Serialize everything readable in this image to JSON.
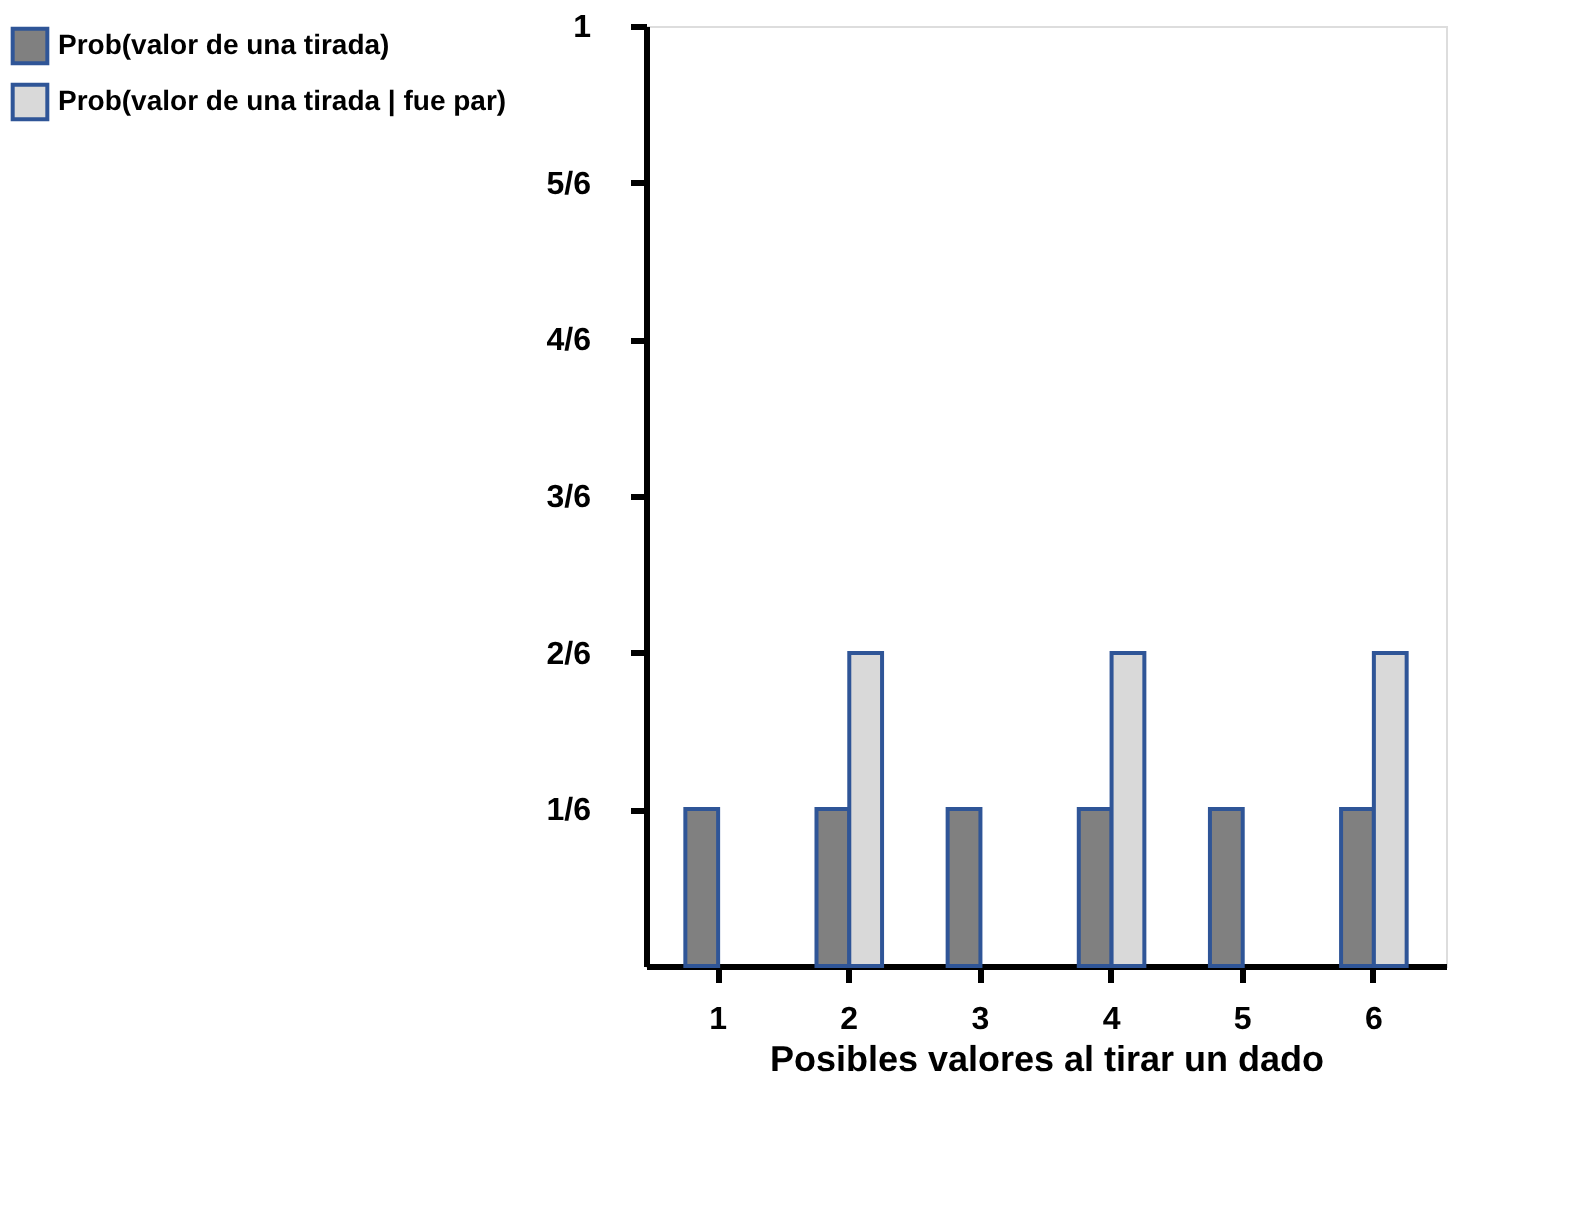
{
  "chart_data": {
    "type": "bar",
    "xlabel": "Posibles valores al tirar un dado",
    "categories": [
      "1",
      "2",
      "3",
      "4",
      "5",
      "6"
    ],
    "series": [
      {
        "name": "Prob(valor de una tirada)",
        "color": "#808080",
        "values": [
          0.167,
          0.167,
          0.167,
          0.167,
          0.167,
          0.167
        ]
      },
      {
        "name": "Prob(valor de una tirada | fue par)",
        "color": "#d9d9d9",
        "values": [
          null,
          0.333,
          null,
          0.333,
          null,
          0.333
        ]
      }
    ],
    "ylim": [
      0,
      1
    ],
    "yticks": [
      {
        "value": 0.1667,
        "label": "1/6"
      },
      {
        "value": 0.3333,
        "label": "2/6"
      },
      {
        "value": 0.5,
        "label": "3/6"
      },
      {
        "value": 0.6667,
        "label": "4/6"
      },
      {
        "value": 0.8333,
        "label": "5/6"
      },
      {
        "value": 1,
        "label": "1"
      }
    ],
    "grid": false,
    "legend": "left"
  }
}
